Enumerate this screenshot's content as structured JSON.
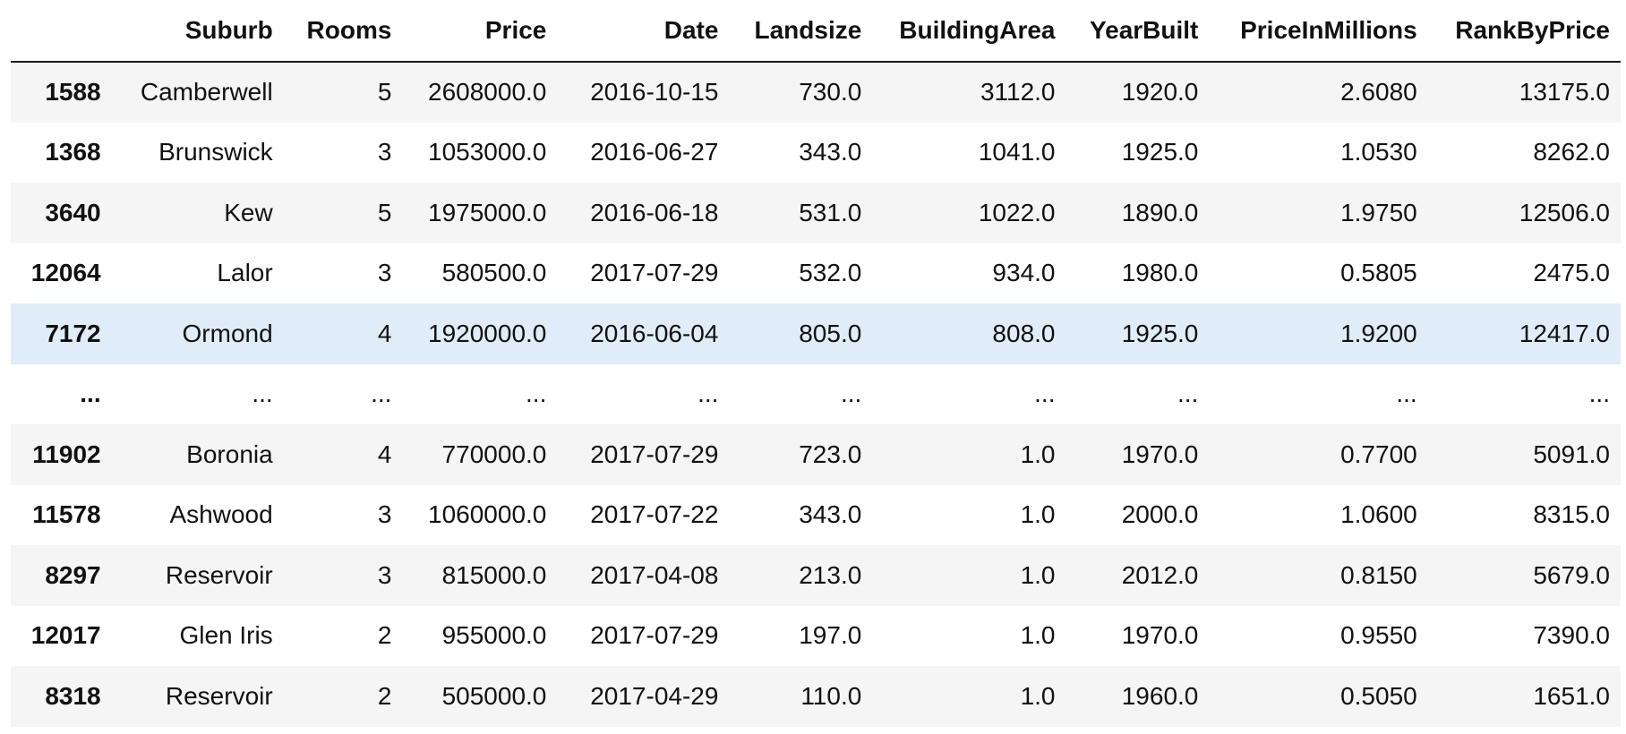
{
  "table": {
    "columns": [
      "",
      "Suburb",
      "Rooms",
      "Price",
      "Date",
      "Landsize",
      "BuildingArea",
      "YearBuilt",
      "PriceInMillions",
      "RankByPrice"
    ],
    "rows": [
      {
        "index": "1588",
        "cells": [
          "Camberwell",
          "5",
          "2608000.0",
          "2016-10-15",
          "730.0",
          "3112.0",
          "1920.0",
          "2.6080",
          "13175.0"
        ]
      },
      {
        "index": "1368",
        "cells": [
          "Brunswick",
          "3",
          "1053000.0",
          "2016-06-27",
          "343.0",
          "1041.0",
          "1925.0",
          "1.0530",
          "8262.0"
        ]
      },
      {
        "index": "3640",
        "cells": [
          "Kew",
          "5",
          "1975000.0",
          "2016-06-18",
          "531.0",
          "1022.0",
          "1890.0",
          "1.9750",
          "12506.0"
        ]
      },
      {
        "index": "12064",
        "cells": [
          "Lalor",
          "3",
          "580500.0",
          "2017-07-29",
          "532.0",
          "934.0",
          "1980.0",
          "0.5805",
          "2475.0"
        ]
      },
      {
        "index": "7172",
        "cells": [
          "Ormond",
          "4",
          "1920000.0",
          "2016-06-04",
          "805.0",
          "808.0",
          "1925.0",
          "1.9200",
          "12417.0"
        ]
      },
      {
        "index": "...",
        "cells": [
          "...",
          "...",
          "...",
          "...",
          "...",
          "...",
          "...",
          "...",
          "..."
        ]
      },
      {
        "index": "11902",
        "cells": [
          "Boronia",
          "4",
          "770000.0",
          "2017-07-29",
          "723.0",
          "1.0",
          "1970.0",
          "0.7700",
          "5091.0"
        ]
      },
      {
        "index": "11578",
        "cells": [
          "Ashwood",
          "3",
          "1060000.0",
          "2017-07-22",
          "343.0",
          "1.0",
          "2000.0",
          "1.0600",
          "8315.0"
        ]
      },
      {
        "index": "8297",
        "cells": [
          "Reservoir",
          "3",
          "815000.0",
          "2017-04-08",
          "213.0",
          "1.0",
          "2012.0",
          "0.8150",
          "5679.0"
        ]
      },
      {
        "index": "12017",
        "cells": [
          "Glen Iris",
          "2",
          "955000.0",
          "2017-07-29",
          "197.0",
          "1.0",
          "1970.0",
          "0.9550",
          "7390.0"
        ]
      },
      {
        "index": "8318",
        "cells": [
          "Reservoir",
          "2",
          "505000.0",
          "2017-04-29",
          "110.0",
          "1.0",
          "1960.0",
          "0.5050",
          "1651.0"
        ]
      }
    ],
    "hover_row": 4,
    "colors": {
      "stripe": "#f5f5f5",
      "hover": "#e0edf9",
      "header_rule": "#1a1a1a"
    }
  }
}
